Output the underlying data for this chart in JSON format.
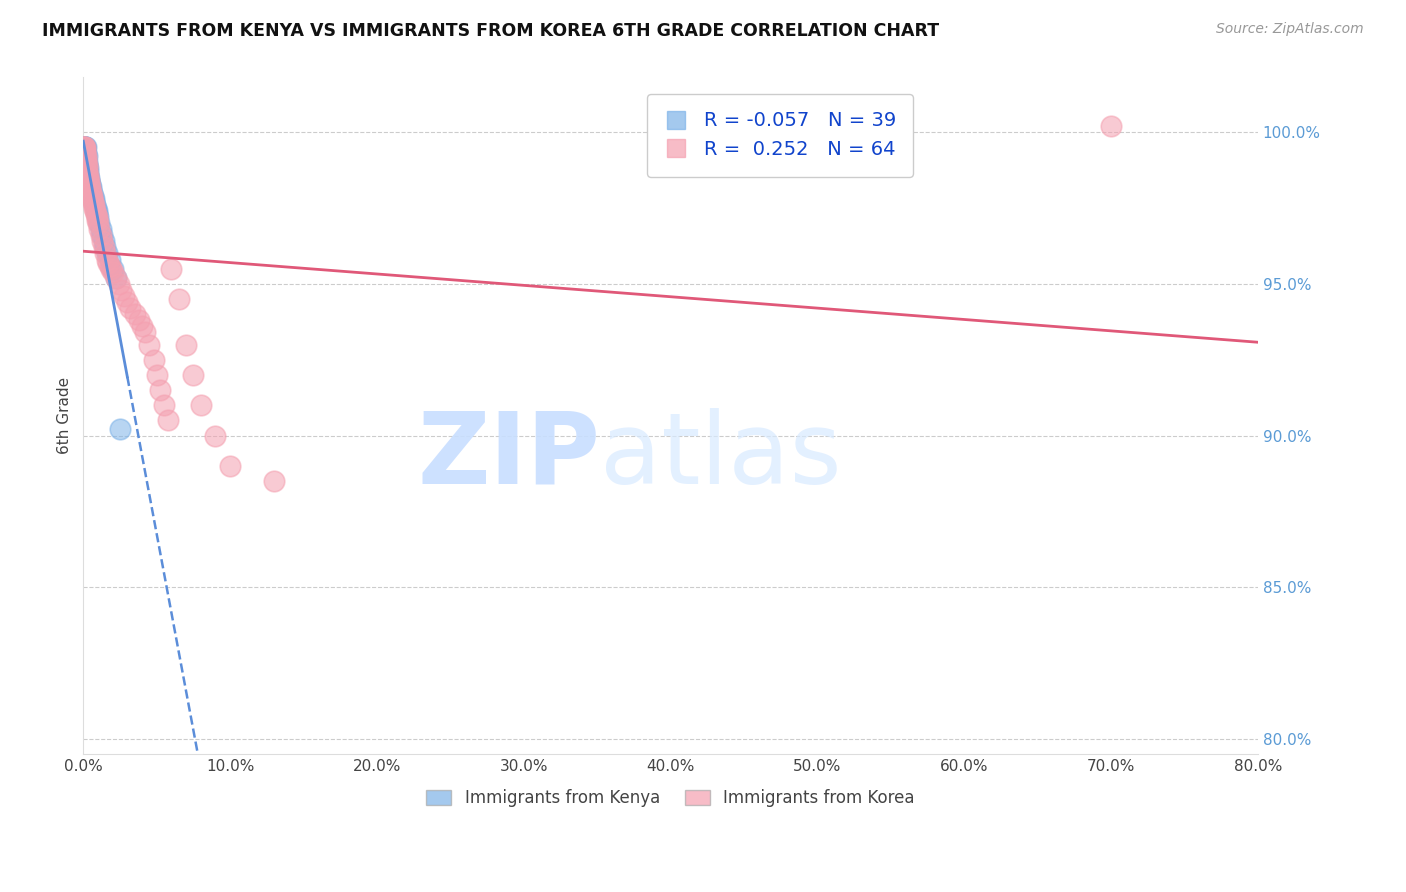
{
  "title": "IMMIGRANTS FROM KENYA VS IMMIGRANTS FROM KOREA 6TH GRADE CORRELATION CHART",
  "source": "Source: ZipAtlas.com",
  "ylabel": "6th Grade",
  "right_ytick_vals": [
    80.0,
    85.0,
    90.0,
    95.0,
    100.0
  ],
  "xlim": [
    0.0,
    80.0
  ],
  "ylim": [
    79.5,
    101.8
  ],
  "kenya_color": "#7EB3E8",
  "korea_color": "#F4A0B0",
  "kenya_line_color": "#5B8DD9",
  "korea_line_color": "#E05878",
  "kenya_R": -0.057,
  "kenya_N": 39,
  "korea_R": 0.252,
  "korea_N": 64,
  "legend_label_kenya": "Immigrants from Kenya",
  "legend_label_korea": "Immigrants from Korea",
  "watermark_zip": "ZIP",
  "watermark_atlas": "atlas",
  "kenya_x": [
    0.05,
    0.08,
    0.1,
    0.12,
    0.15,
    0.18,
    0.2,
    0.22,
    0.25,
    0.28,
    0.3,
    0.32,
    0.35,
    0.38,
    0.4,
    0.42,
    0.45,
    0.48,
    0.5,
    0.55,
    0.6,
    0.65,
    0.7,
    0.75,
    0.8,
    0.85,
    0.9,
    0.95,
    1.0,
    1.1,
    1.2,
    1.3,
    1.4,
    1.5,
    1.6,
    1.8,
    2.0,
    2.2,
    2.5
  ],
  "kenya_y": [
    99.5,
    99.5,
    99.5,
    99.5,
    99.5,
    99.5,
    99.3,
    99.2,
    99.0,
    98.9,
    98.8,
    98.7,
    98.6,
    98.5,
    98.4,
    98.4,
    98.3,
    98.2,
    98.2,
    98.1,
    98.0,
    97.9,
    97.8,
    97.7,
    97.6,
    97.5,
    97.4,
    97.3,
    97.2,
    97.0,
    96.8,
    96.6,
    96.4,
    96.2,
    96.0,
    95.8,
    95.5,
    95.2,
    90.2
  ],
  "korea_x": [
    0.04,
    0.06,
    0.08,
    0.1,
    0.12,
    0.14,
    0.16,
    0.18,
    0.2,
    0.22,
    0.25,
    0.28,
    0.3,
    0.33,
    0.36,
    0.4,
    0.44,
    0.48,
    0.52,
    0.56,
    0.6,
    0.65,
    0.7,
    0.75,
    0.8,
    0.85,
    0.9,
    0.95,
    1.0,
    1.1,
    1.2,
    1.3,
    1.4,
    1.5,
    1.6,
    1.7,
    1.8,
    1.9,
    2.0,
    2.2,
    2.4,
    2.6,
    2.8,
    3.0,
    3.2,
    3.5,
    3.8,
    4.0,
    4.2,
    4.5,
    4.8,
    5.0,
    5.2,
    5.5,
    5.8,
    6.0,
    6.5,
    7.0,
    7.5,
    8.0,
    9.0,
    10.0,
    13.0,
    70.0
  ],
  "korea_y": [
    99.5,
    99.5,
    99.5,
    99.5,
    99.4,
    99.3,
    99.2,
    99.1,
    99.0,
    98.9,
    98.8,
    98.7,
    98.6,
    98.5,
    98.4,
    98.3,
    98.2,
    98.1,
    98.0,
    97.9,
    97.8,
    97.7,
    97.6,
    97.5,
    97.4,
    97.3,
    97.2,
    97.1,
    97.0,
    96.8,
    96.6,
    96.4,
    96.2,
    96.0,
    95.8,
    95.7,
    95.6,
    95.5,
    95.4,
    95.2,
    95.0,
    94.8,
    94.6,
    94.4,
    94.2,
    94.0,
    93.8,
    93.6,
    93.4,
    93.0,
    92.5,
    92.0,
    91.5,
    91.0,
    90.5,
    95.5,
    94.5,
    93.0,
    92.0,
    91.0,
    90.0,
    89.0,
    88.5,
    100.2
  ]
}
